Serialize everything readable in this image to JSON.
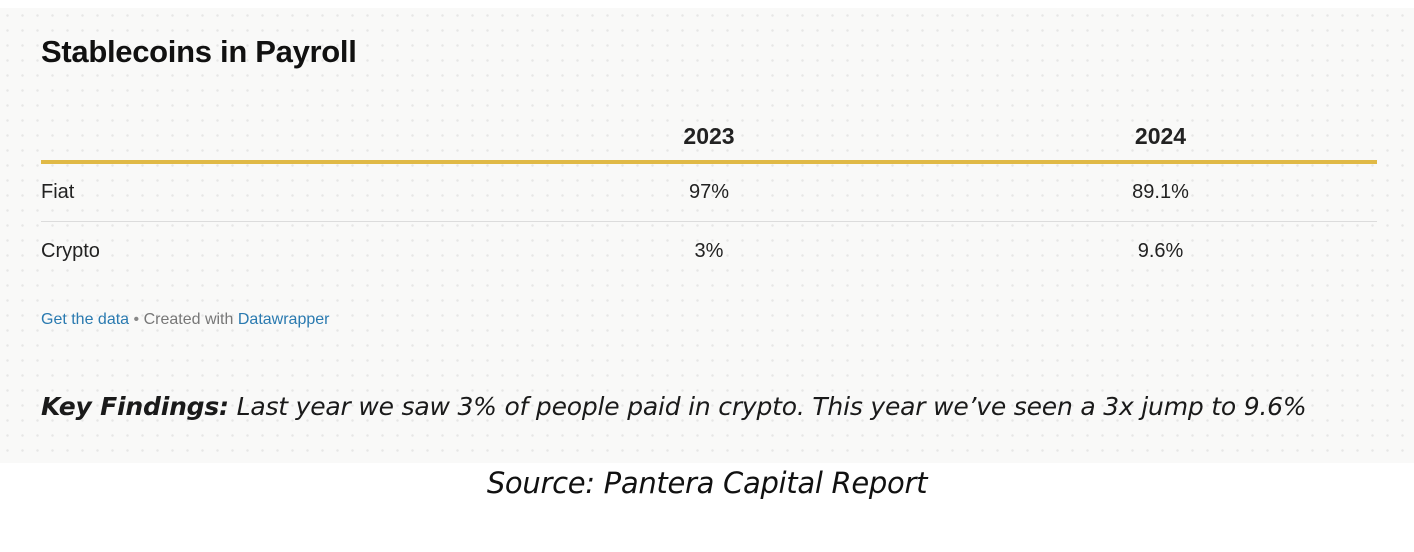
{
  "chart_data": {
    "type": "table",
    "title": "Stablecoins in Payroll",
    "columns": [
      "",
      "2023",
      "2024"
    ],
    "rows": [
      {
        "label": "Fiat",
        "values": [
          "97%",
          "89.1%"
        ]
      },
      {
        "label": "Crypto",
        "values": [
          "3%",
          "9.6%"
        ]
      }
    ],
    "series": [
      {
        "name": "Fiat",
        "values": [
          97,
          89.1
        ]
      },
      {
        "name": "Crypto",
        "values": [
          3,
          9.6
        ]
      }
    ],
    "categories": [
      "2023",
      "2024"
    ],
    "unit": "%"
  },
  "colors": {
    "header_rule": "#e0b946",
    "link": "#2a7ab0",
    "background": "#f9f9f8"
  },
  "footer": {
    "get_data_label": "Get the data",
    "separator": "•",
    "created_with_label": "Created with",
    "datawrapper_label": "Datawrapper"
  },
  "findings": {
    "label": "Key Findings:",
    "text": "Last year we saw 3% of people paid in crypto. This year we’ve seen a 3x jump to 9.6%"
  },
  "source": "Source: Pantera Capital Report"
}
